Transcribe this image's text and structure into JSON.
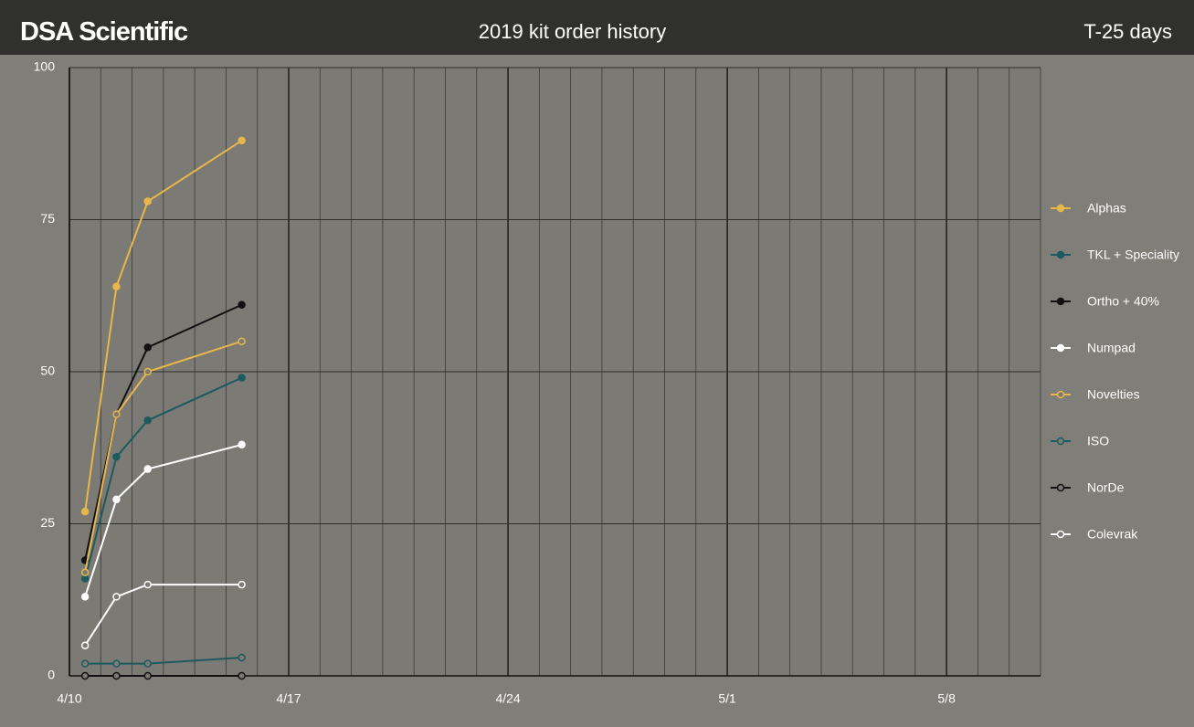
{
  "header": {
    "brand": "DSA Scientific",
    "title": "2019 kit order history",
    "countdown": "T-25 days"
  },
  "chart_data": {
    "type": "line",
    "x": [
      0.5,
      1.5,
      2.5,
      5.5
    ],
    "xlim": [
      0,
      31
    ],
    "xticks": [
      {
        "value": 0,
        "label": "4/10"
      },
      {
        "value": 7,
        "label": "4/17"
      },
      {
        "value": 14,
        "label": "4/24"
      },
      {
        "value": 21,
        "label": "5/1"
      },
      {
        "value": 28,
        "label": "5/8"
      }
    ],
    "ylim": [
      0,
      100
    ],
    "yticks": [
      0,
      25,
      50,
      75,
      100
    ],
    "grid": true,
    "legend": "right",
    "series": [
      {
        "name": "Alphas",
        "color": "#e8b74a",
        "marker": "filled",
        "values": [
          27,
          64,
          78,
          88
        ]
      },
      {
        "name": "TKL + Speciality",
        "color": "#1d5a5e",
        "marker": "filled",
        "values": [
          16,
          36,
          42,
          49
        ]
      },
      {
        "name": "Ortho + 40%",
        "color": "#111111",
        "marker": "filled",
        "values": [
          19,
          43,
          54,
          61
        ]
      },
      {
        "name": "Numpad",
        "color": "#ffffff",
        "marker": "filled",
        "values": [
          13,
          29,
          34,
          38
        ]
      },
      {
        "name": "Novelties",
        "color": "#e8b74a",
        "marker": "hollow",
        "values": [
          17,
          43,
          50,
          55
        ]
      },
      {
        "name": "ISO",
        "color": "#1d5a5e",
        "marker": "hollow",
        "values": [
          2,
          2,
          2,
          3
        ]
      },
      {
        "name": "NorDe",
        "color": "#111111",
        "marker": "hollow",
        "values": [
          0,
          0,
          0,
          0
        ]
      },
      {
        "name": "Colevrak",
        "color": "#ffffff",
        "marker": "hollow",
        "values": [
          5,
          13,
          15,
          15
        ]
      }
    ]
  }
}
